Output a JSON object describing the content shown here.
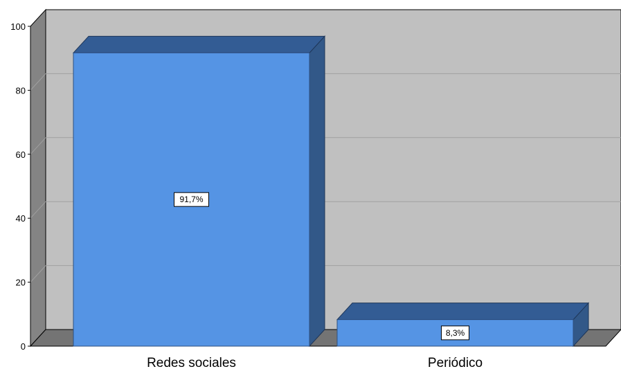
{
  "chart_data": {
    "type": "bar",
    "categories": [
      "Redes sociales",
      "Periódico"
    ],
    "values": [
      91.7,
      8.3
    ],
    "data_labels": [
      "91,7%",
      "8,3%"
    ],
    "yticks": [
      "0",
      "20",
      "40",
      "60",
      "80",
      "100"
    ],
    "ylim": [
      0,
      100
    ],
    "grid": true,
    "legend": false,
    "colors": {
      "bar_front": "#5594E4",
      "bar_side": "#325888",
      "bar_top": "#335C94",
      "wall": "#C0C0C0",
      "wall_side": "#848484",
      "floor": "#747474",
      "gridline": "#A0A0A0"
    }
  }
}
